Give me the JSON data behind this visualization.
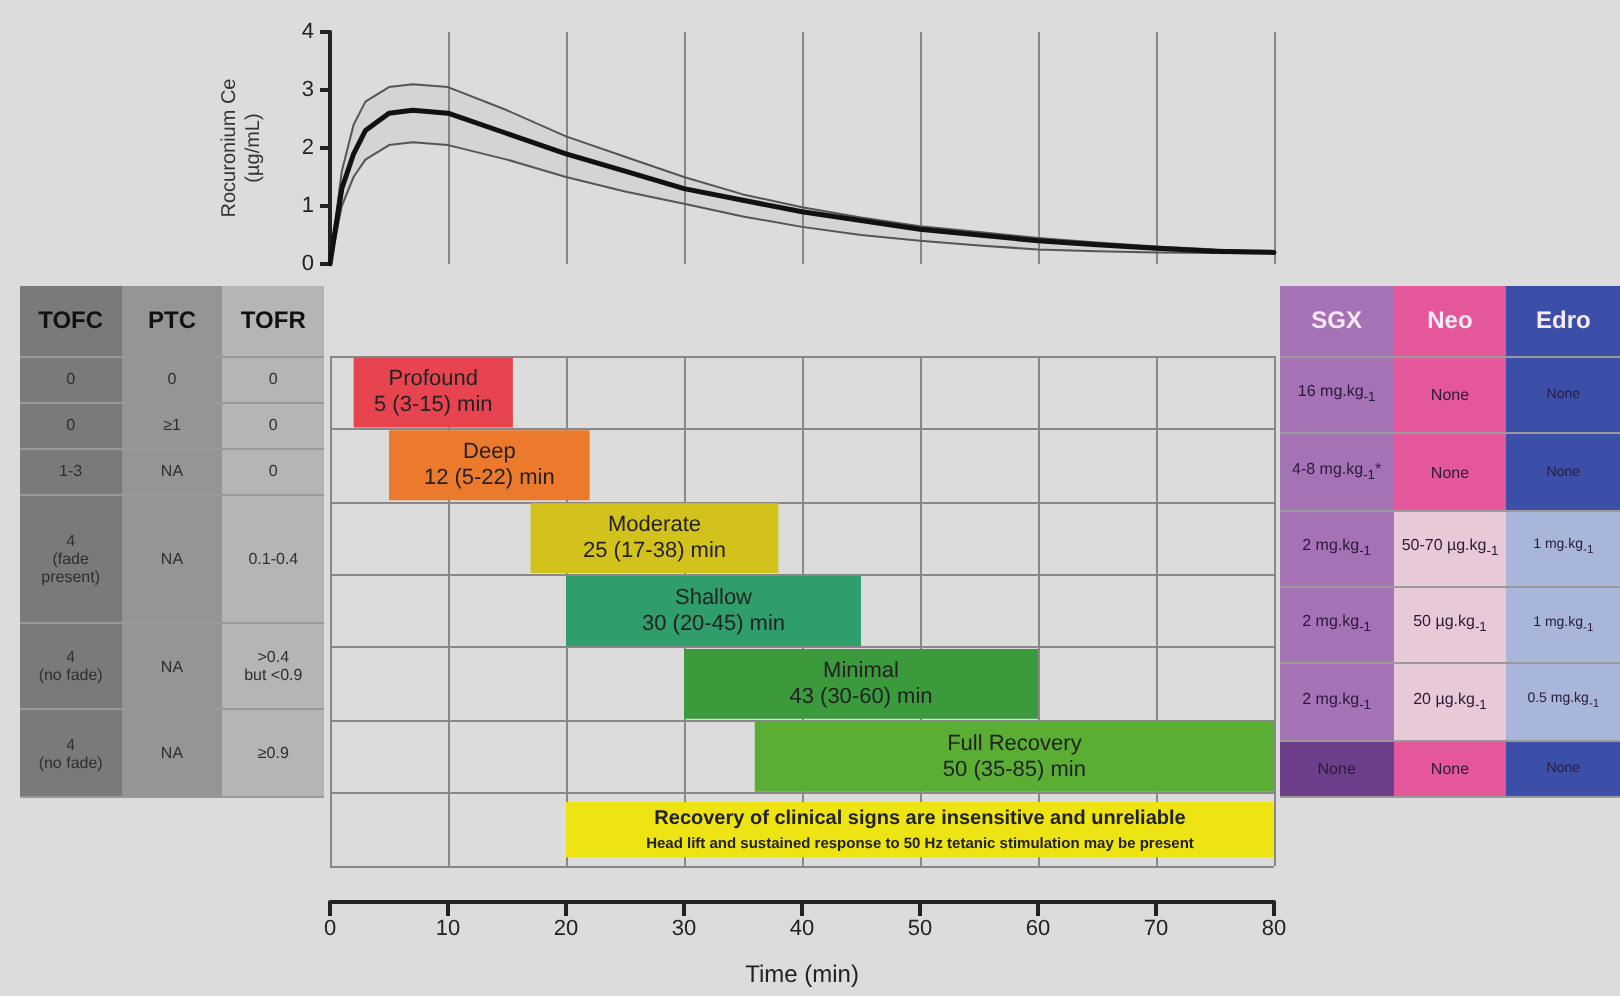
{
  "chart_data": [
    {
      "type": "line",
      "ylabel": "Rocuronium Ce\n(µg/mL)",
      "xlim": [
        0,
        80
      ],
      "xticks": [
        0,
        10,
        20,
        30,
        40,
        50,
        60,
        70,
        80
      ],
      "ylim": [
        0,
        4
      ],
      "yticks": [
        0,
        1,
        2,
        3,
        4
      ],
      "grid": "x",
      "tick_labels": "y",
      "marker": "none",
      "line_style": "solid",
      "series": [
        {
          "color": "#111111",
          "x": [
            0,
            1,
            2,
            3,
            5,
            7,
            10,
            15,
            20,
            25,
            30,
            35,
            40,
            45,
            50,
            55,
            60,
            65,
            70,
            75,
            80
          ],
          "values": [
            0,
            1.3,
            1.9,
            2.3,
            2.6,
            2.65,
            2.6,
            2.25,
            1.9,
            1.6,
            1.3,
            1.1,
            0.9,
            0.75,
            0.6,
            0.5,
            0.4,
            0.33,
            0.27,
            0.22,
            0.2
          ],
          "upper": [
            0,
            1.6,
            2.4,
            2.8,
            3.05,
            3.1,
            3.05,
            2.65,
            2.2,
            1.85,
            1.5,
            1.2,
            0.98,
            0.8,
            0.65,
            0.55,
            0.45,
            0.37,
            0.3,
            0.25,
            0.2
          ],
          "lower": [
            0,
            1.0,
            1.5,
            1.8,
            2.05,
            2.1,
            2.05,
            1.8,
            1.5,
            1.25,
            1.04,
            0.82,
            0.64,
            0.5,
            0.4,
            0.32,
            0.25,
            0.22,
            0.2,
            0.19,
            0.18
          ]
        }
      ]
    },
    {
      "type": "bar",
      "orientation": "horizontal",
      "xlabel": "Time (min)",
      "categories": [
        null,
        null,
        null,
        null,
        null,
        null,
        null
      ],
      "xlim": [
        0,
        80
      ],
      "xticks": [
        0,
        10,
        20,
        30,
        40,
        50,
        60,
        70,
        80
      ],
      "grid": true,
      "base": [
        2,
        5,
        17,
        20,
        30,
        36,
        20
      ],
      "values": [
        13.5,
        17,
        21,
        25,
        30,
        44,
        60
      ],
      "colors": [
        "#e8444f",
        "#ec7a2c",
        "#d4c21c",
        "#2f9e6a",
        "#3a9a3c",
        "#5aae34",
        "#eee313"
      ],
      "value_labels": [
        "Profound\n5 (3-15) min",
        "Deep\n12 (5-22) min",
        "Moderate\n25 (17-38) min",
        "Shallow\n30 (20-45) min",
        "Minimal\n43 (30-60) min",
        "Full Recovery\n50 (35-85) min",
        "Recovery of clinical signs are insensitive and unreliable\nHead lift and sustained response to 50 Hz tetanic stimulation may be present"
      ]
    },
    {
      "type": "other",
      "annotations": [
        "TOFC",
        "PTC",
        "TOFR",
        "0",
        "0",
        "0",
        "0",
        "≥1",
        "0",
        "1-3",
        "NA",
        "0",
        "4\n(fade\npresent)",
        "NA",
        "0.1-0.4",
        "4\n(no fade)",
        "NA",
        ">0.4\nbut <0.9",
        "4\n(no fade)",
        "NA",
        "≥0.9"
      ]
    },
    {
      "type": "other",
      "annotations": [
        "SGX",
        "Neo",
        "Edro",
        "16 mg.kg$_{-1}$",
        "None",
        "None",
        "4-8 mg.kg$_{-1}$*",
        "None",
        "None",
        "2 mg.kg$_{-1}$",
        "50-70 µg.kg$_{-1}$",
        "1 mg.kg$_{-1}$",
        "2 mg.kg$_{-1}$",
        "50 µg.kg$_{-1}$",
        "1 mg.kg$_{-1}$",
        "2 mg.kg$_{-1}$",
        "20 µg.kg$_{-1}$",
        "0.5 mg.kg$_{-1}$",
        "None",
        "None",
        "None"
      ]
    }
  ]
}
